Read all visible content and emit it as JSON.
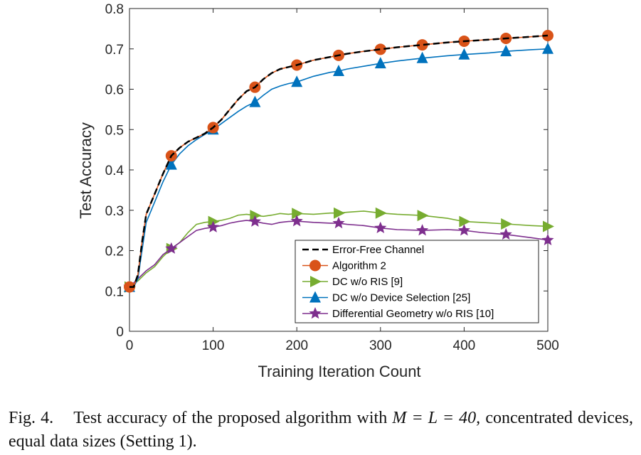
{
  "chart_data": {
    "type": "line",
    "xlabel": "Training Iteration Count",
    "ylabel": "Test Accuracy",
    "xlim": [
      0,
      500
    ],
    "ylim": [
      0,
      0.8
    ],
    "xticks": [
      "0",
      "100",
      "200",
      "300",
      "400",
      "500"
    ],
    "yticks": [
      "0",
      "0.1",
      "0.2",
      "0.3",
      "0.4",
      "0.5",
      "0.6",
      "0.7",
      "0.8"
    ],
    "grid": false,
    "legend_position": "lower-right",
    "series": [
      {
        "name": "Error-Free Channel",
        "color": "#000000",
        "style": "dashed",
        "marker": "none",
        "x": [
          0,
          5,
          10,
          15,
          20,
          30,
          40,
          50,
          60,
          70,
          80,
          90,
          100,
          110,
          120,
          130,
          140,
          150,
          160,
          170,
          180,
          190,
          200,
          220,
          240,
          250,
          260,
          280,
          300,
          320,
          350,
          380,
          400,
          430,
          450,
          480,
          500
        ],
        "y": [
          0.11,
          0.11,
          0.14,
          0.22,
          0.29,
          0.34,
          0.39,
          0.435,
          0.455,
          0.47,
          0.48,
          0.49,
          0.505,
          0.525,
          0.55,
          0.575,
          0.595,
          0.605,
          0.625,
          0.64,
          0.65,
          0.655,
          0.66,
          0.672,
          0.68,
          0.684,
          0.688,
          0.694,
          0.699,
          0.704,
          0.71,
          0.716,
          0.719,
          0.723,
          0.726,
          0.73,
          0.733
        ]
      },
      {
        "name": "Algorithm 2",
        "color": "#D95319",
        "style": "solid",
        "marker": "circle",
        "x": [
          0,
          5,
          10,
          15,
          20,
          30,
          40,
          50,
          60,
          70,
          80,
          90,
          100,
          110,
          120,
          130,
          140,
          150,
          160,
          170,
          180,
          190,
          200,
          220,
          240,
          250,
          260,
          280,
          300,
          320,
          350,
          380,
          400,
          430,
          450,
          480,
          500
        ],
        "y": [
          0.11,
          0.11,
          0.14,
          0.22,
          0.29,
          0.34,
          0.39,
          0.435,
          0.455,
          0.47,
          0.48,
          0.49,
          0.505,
          0.525,
          0.55,
          0.575,
          0.595,
          0.605,
          0.625,
          0.64,
          0.65,
          0.655,
          0.66,
          0.672,
          0.68,
          0.684,
          0.688,
          0.694,
          0.699,
          0.704,
          0.71,
          0.716,
          0.719,
          0.723,
          0.726,
          0.73,
          0.733
        ],
        "marker_x": [
          0,
          50,
          100,
          150,
          200,
          250,
          300,
          350,
          400,
          450,
          500
        ]
      },
      {
        "name": "DC w/o RIS [9]",
        "color": "#77AC30",
        "style": "solid",
        "marker": "triangle-right",
        "x": [
          0,
          10,
          20,
          30,
          40,
          50,
          60,
          70,
          80,
          90,
          100,
          110,
          120,
          130,
          140,
          150,
          160,
          170,
          180,
          190,
          200,
          220,
          240,
          250,
          260,
          280,
          300,
          320,
          350,
          380,
          400,
          420,
          450,
          480,
          500
        ],
        "y": [
          0.11,
          0.125,
          0.145,
          0.16,
          0.185,
          0.205,
          0.22,
          0.245,
          0.265,
          0.27,
          0.272,
          0.275,
          0.28,
          0.288,
          0.29,
          0.287,
          0.285,
          0.288,
          0.292,
          0.29,
          0.292,
          0.29,
          0.293,
          0.293,
          0.295,
          0.298,
          0.293,
          0.29,
          0.287,
          0.28,
          0.272,
          0.27,
          0.266,
          0.262,
          0.26
        ],
        "marker_x": [
          0,
          50,
          100,
          150,
          200,
          250,
          300,
          350,
          400,
          450,
          500
        ]
      },
      {
        "name": "DC w/o Device Selection [25]",
        "color": "#0072BD",
        "style": "solid",
        "marker": "triangle-up",
        "x": [
          0,
          5,
          10,
          15,
          20,
          30,
          40,
          50,
          60,
          70,
          80,
          90,
          100,
          110,
          120,
          130,
          140,
          150,
          160,
          170,
          180,
          190,
          200,
          220,
          240,
          250,
          260,
          280,
          300,
          320,
          350,
          380,
          400,
          430,
          450,
          480,
          500
        ],
        "y": [
          0.11,
          0.11,
          0.13,
          0.2,
          0.27,
          0.32,
          0.37,
          0.413,
          0.44,
          0.46,
          0.475,
          0.488,
          0.5,
          0.515,
          0.53,
          0.545,
          0.558,
          0.568,
          0.585,
          0.6,
          0.608,
          0.614,
          0.618,
          0.632,
          0.642,
          0.645,
          0.65,
          0.657,
          0.664,
          0.67,
          0.677,
          0.683,
          0.686,
          0.69,
          0.694,
          0.698,
          0.7
        ],
        "marker_x": [
          0,
          50,
          100,
          150,
          200,
          250,
          300,
          350,
          400,
          450,
          500
        ]
      },
      {
        "name": "Differential Geometry w/o RIS [10]",
        "color": "#7E2F8E",
        "style": "solid",
        "marker": "star",
        "x": [
          0,
          10,
          20,
          30,
          40,
          50,
          60,
          70,
          80,
          90,
          100,
          110,
          120,
          130,
          140,
          150,
          160,
          170,
          180,
          190,
          200,
          220,
          240,
          250,
          260,
          280,
          300,
          320,
          350,
          380,
          400,
          420,
          450,
          480,
          500
        ],
        "y": [
          0.11,
          0.13,
          0.15,
          0.165,
          0.19,
          0.205,
          0.22,
          0.235,
          0.25,
          0.255,
          0.258,
          0.262,
          0.268,
          0.272,
          0.275,
          0.272,
          0.268,
          0.265,
          0.27,
          0.272,
          0.273,
          0.27,
          0.268,
          0.268,
          0.265,
          0.262,
          0.256,
          0.252,
          0.25,
          0.252,
          0.25,
          0.245,
          0.24,
          0.232,
          0.226
        ],
        "marker_x": [
          0,
          50,
          100,
          150,
          200,
          250,
          300,
          350,
          400,
          450,
          500
        ]
      }
    ]
  },
  "caption": {
    "label": "Fig. 4.",
    "text_before": "Test accuracy of the proposed algorithm with",
    "math": "M = L = 40,",
    "text_after": "concentrated devices, equal data sizes (Setting 1)."
  }
}
